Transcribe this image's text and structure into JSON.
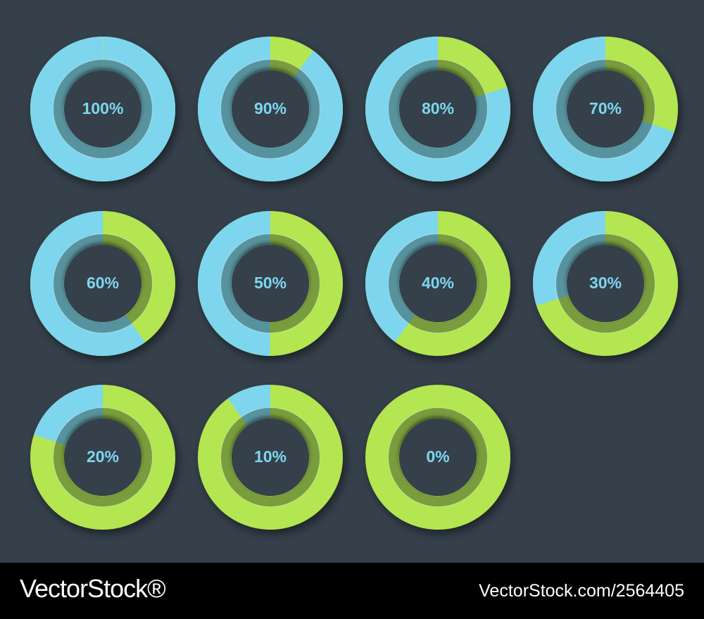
{
  "chart_data": [
    {
      "type": "donut",
      "values": [
        100
      ],
      "value_labels": [
        "100%"
      ],
      "ylim": [
        0,
        100
      ],
      "color": "#7dd6ee",
      "rest_color": "#b3e650"
    },
    {
      "type": "donut",
      "values": [
        90
      ],
      "value_labels": [
        "90%"
      ],
      "ylim": [
        0,
        100
      ],
      "color": "#7dd6ee",
      "rest_color": "#b3e650"
    },
    {
      "type": "donut",
      "values": [
        80
      ],
      "value_labels": [
        "80%"
      ],
      "ylim": [
        0,
        100
      ],
      "color": "#7dd6ee",
      "rest_color": "#b3e650"
    },
    {
      "type": "donut",
      "values": [
        70
      ],
      "value_labels": [
        "70%"
      ],
      "ylim": [
        0,
        100
      ],
      "color": "#7dd6ee",
      "rest_color": "#b3e650"
    },
    {
      "type": "donut",
      "values": [
        60
      ],
      "value_labels": [
        "60%"
      ],
      "ylim": [
        0,
        100
      ],
      "color": "#7dd6ee",
      "rest_color": "#b3e650"
    },
    {
      "type": "donut",
      "values": [
        50
      ],
      "value_labels": [
        "50%"
      ],
      "ylim": [
        0,
        100
      ],
      "color": "#7dd6ee",
      "rest_color": "#b3e650"
    },
    {
      "type": "donut",
      "values": [
        40
      ],
      "value_labels": [
        "40%"
      ],
      "ylim": [
        0,
        100
      ],
      "color": "#7dd6ee",
      "rest_color": "#b3e650"
    },
    {
      "type": "donut",
      "values": [
        30
      ],
      "value_labels": [
        "30%"
      ],
      "ylim": [
        0,
        100
      ],
      "color": "#7dd6ee",
      "rest_color": "#b3e650"
    },
    {
      "type": "donut",
      "values": [
        20
      ],
      "value_labels": [
        "20%"
      ],
      "ylim": [
        0,
        100
      ],
      "color": "#7dd6ee",
      "rest_color": "#b3e650"
    },
    {
      "type": "donut",
      "values": [
        10
      ],
      "value_labels": [
        "10%"
      ],
      "ylim": [
        0,
        100
      ],
      "color": "#7dd6ee",
      "rest_color": "#b3e650"
    },
    {
      "type": "donut",
      "values": [
        0
      ],
      "value_labels": [
        "0%"
      ],
      "ylim": [
        0,
        100
      ],
      "color": "#7dd6ee",
      "rest_color": "#b3e650"
    }
  ],
  "footer": {
    "brand": "VectorStock®",
    "id": "VectorStock.com/2564405"
  }
}
